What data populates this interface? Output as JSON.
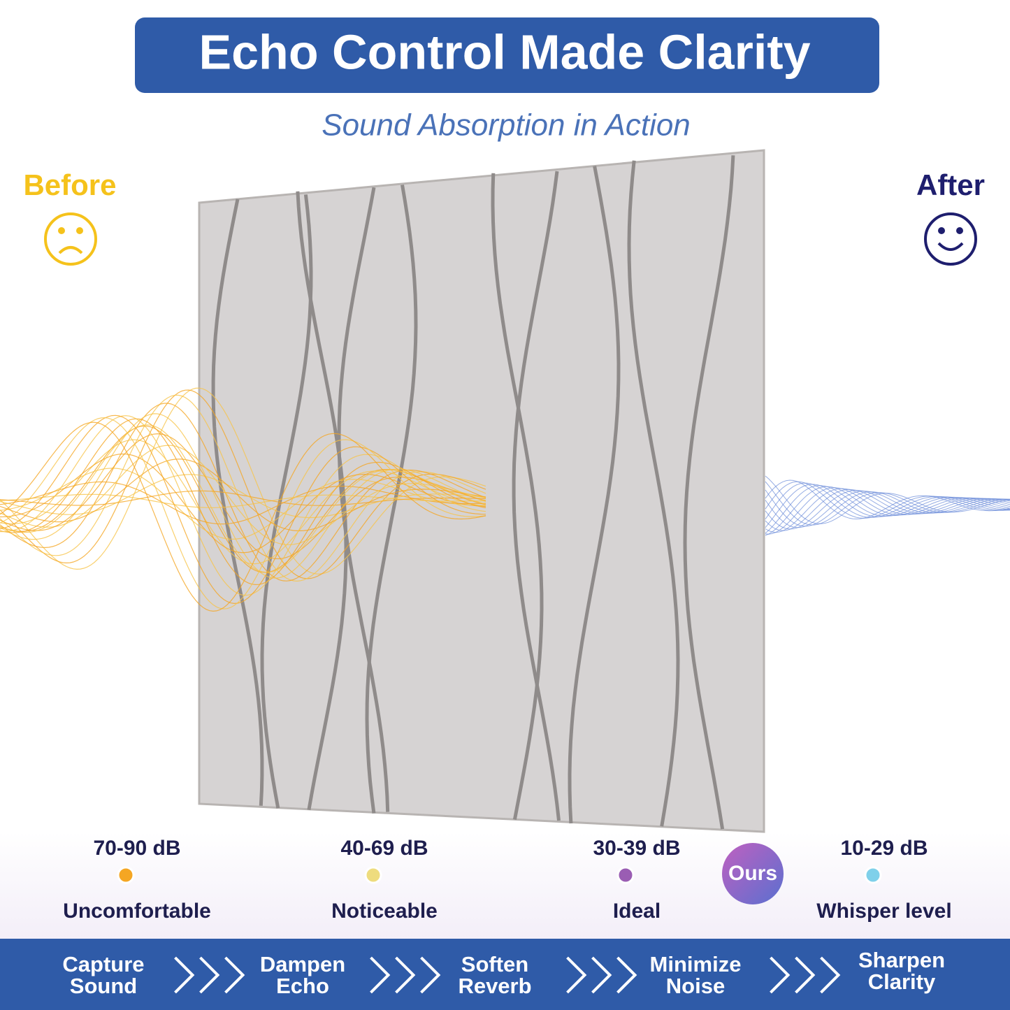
{
  "header": {
    "title": "Echo Control Made Clarity",
    "subtitle": "Sound Absorption in Action"
  },
  "before": {
    "label": "Before"
  },
  "after": {
    "label": "After"
  },
  "scale": {
    "badge": "Ours",
    "levels": [
      {
        "range": "70-90 dB",
        "label": "Uncomfortable",
        "color": "#f5a623"
      },
      {
        "range": "40-69 dB",
        "label": "Noticeable",
        "color": "#eedc7e"
      },
      {
        "range": "30-39 dB",
        "label": "Ideal",
        "color": "#9a5db3"
      },
      {
        "range": "10-29 dB",
        "label": "Whisper level",
        "color": "#7fd0ea"
      }
    ]
  },
  "steps": [
    [
      "Capture",
      "Sound"
    ],
    [
      "Dampen",
      "Echo"
    ],
    [
      "Soften",
      "Reverb"
    ],
    [
      "Minimize",
      "Noise"
    ],
    [
      "Sharpen",
      "Clarity"
    ]
  ]
}
